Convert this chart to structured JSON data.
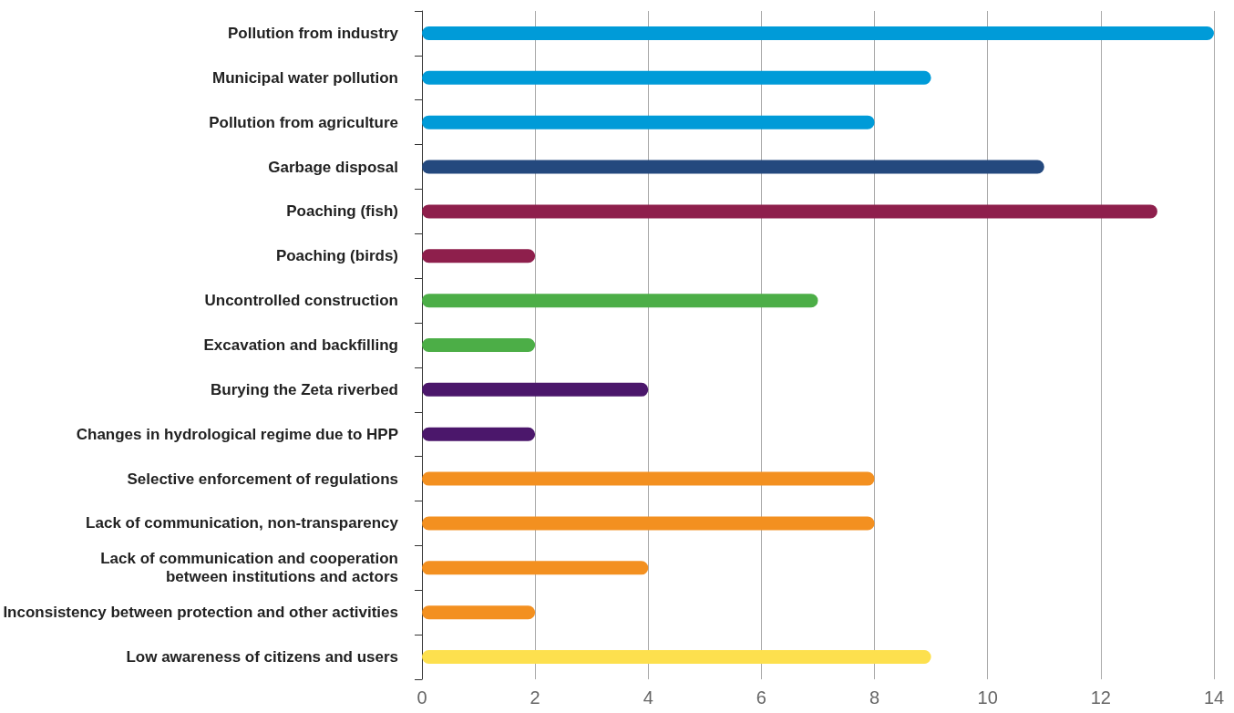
{
  "chart_data": {
    "type": "bar",
    "orientation": "horizontal",
    "categories": [
      "Pollution from industry",
      "Municipal water pollution",
      "Pollution from agriculture",
      "Garbage disposal",
      "Poaching (fish)",
      "Poaching (birds)",
      "Uncontrolled construction",
      "Excavation and backfilling",
      "Burying the Zeta riverbed",
      "Changes in hydrological regime due to HPP",
      "Selective enforcement of regulations",
      "Lack of communication, non-transparency",
      "Lack of communication and cooperation\nbetween institutions and actors",
      "Inconsistency between protection and other activities",
      "Low awareness of citizens and users"
    ],
    "values": [
      14,
      9,
      8,
      11,
      13,
      2,
      7,
      2,
      4,
      2,
      8,
      8,
      4,
      2,
      9
    ],
    "colors": [
      "#009bd8",
      "#009bd8",
      "#009bd8",
      "#24497e",
      "#8e1f4c",
      "#8e1f4c",
      "#4cae47",
      "#4cae47",
      "#4b176b",
      "#4b176b",
      "#f39020",
      "#f39020",
      "#f39020",
      "#f39020",
      "#fde04e"
    ],
    "xlim": [
      0,
      14
    ],
    "xticks": [
      0,
      2,
      4,
      6,
      8,
      10,
      12,
      14
    ],
    "grid": "x"
  }
}
